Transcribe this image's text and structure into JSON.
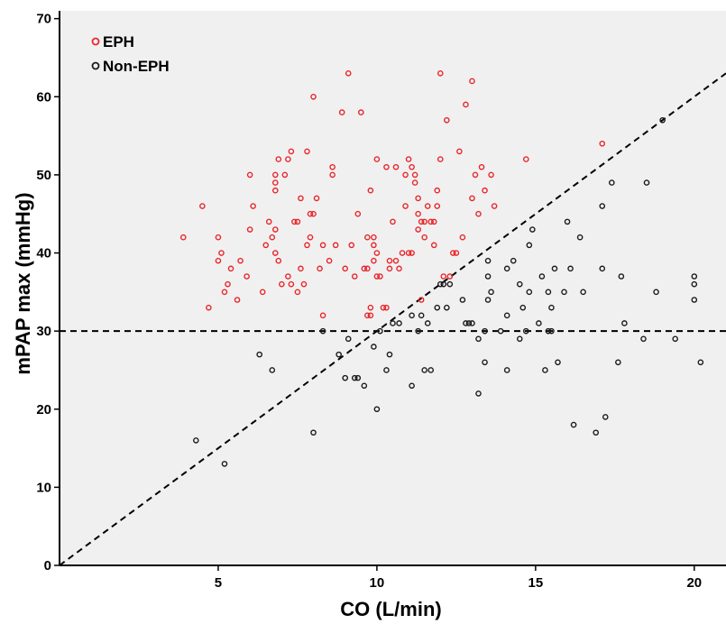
{
  "chart_data": {
    "type": "scatter",
    "xlabel": "CO (L/min)",
    "ylabel": "mPAP max (mmHg)",
    "xlim": [
      0,
      21
    ],
    "ylim": [
      0,
      71
    ],
    "xticks": [
      5,
      10,
      15,
      20
    ],
    "yticks": [
      0,
      10,
      20,
      30,
      40,
      50,
      60,
      70
    ],
    "grid": false,
    "background": "#f0f0f0",
    "legend_position": "top-left",
    "reference_lines": [
      {
        "kind": "horizontal",
        "y": 30,
        "style": "dashed"
      },
      {
        "kind": "diagonal",
        "x": [
          0,
          21
        ],
        "y": [
          0,
          63
        ],
        "style": "dashed"
      }
    ],
    "series": [
      {
        "name": "EPH",
        "color": "#e8262b",
        "points": [
          [
            3.9,
            42
          ],
          [
            4.5,
            46
          ],
          [
            4.7,
            33
          ],
          [
            5.0,
            42
          ],
          [
            5.0,
            39
          ],
          [
            5.1,
            40
          ],
          [
            5.2,
            35
          ],
          [
            5.3,
            36
          ],
          [
            5.4,
            38
          ],
          [
            5.6,
            34
          ],
          [
            5.7,
            39
          ],
          [
            5.9,
            37
          ],
          [
            6.0,
            50
          ],
          [
            6.0,
            43
          ],
          [
            6.1,
            46
          ],
          [
            6.4,
            35
          ],
          [
            6.5,
            41
          ],
          [
            6.6,
            44
          ],
          [
            6.7,
            42
          ],
          [
            6.8,
            43
          ],
          [
            6.8,
            50
          ],
          [
            6.8,
            49
          ],
          [
            6.8,
            48
          ],
          [
            6.8,
            40
          ],
          [
            6.9,
            39
          ],
          [
            6.9,
            52
          ],
          [
            7.0,
            36
          ],
          [
            7.1,
            50
          ],
          [
            7.2,
            37
          ],
          [
            7.2,
            52
          ],
          [
            7.3,
            53
          ],
          [
            7.3,
            36
          ],
          [
            7.4,
            44
          ],
          [
            7.5,
            44
          ],
          [
            7.5,
            35
          ],
          [
            7.6,
            38
          ],
          [
            7.6,
            47
          ],
          [
            7.7,
            36
          ],
          [
            7.8,
            53
          ],
          [
            7.8,
            41
          ],
          [
            7.9,
            45
          ],
          [
            7.9,
            42
          ],
          [
            8.0,
            60
          ],
          [
            8.0,
            45
          ],
          [
            8.1,
            47
          ],
          [
            8.2,
            38
          ],
          [
            8.3,
            32
          ],
          [
            8.3,
            41
          ],
          [
            8.5,
            39
          ],
          [
            8.6,
            51
          ],
          [
            8.6,
            50
          ],
          [
            8.7,
            41
          ],
          [
            8.9,
            58
          ],
          [
            9.0,
            38
          ],
          [
            9.1,
            63
          ],
          [
            9.2,
            41
          ],
          [
            9.3,
            37
          ],
          [
            9.4,
            45
          ],
          [
            9.5,
            58
          ],
          [
            9.6,
            38
          ],
          [
            9.7,
            38
          ],
          [
            9.7,
            32
          ],
          [
            9.7,
            42
          ],
          [
            9.8,
            48
          ],
          [
            9.8,
            32
          ],
          [
            9.8,
            33
          ],
          [
            9.9,
            41
          ],
          [
            9.9,
            42
          ],
          [
            9.9,
            39
          ],
          [
            10.0,
            40
          ],
          [
            10.0,
            37
          ],
          [
            10.0,
            52
          ],
          [
            10.1,
            37
          ],
          [
            10.2,
            33
          ],
          [
            10.3,
            33
          ],
          [
            10.3,
            51
          ],
          [
            10.4,
            39
          ],
          [
            10.4,
            38
          ],
          [
            10.5,
            44
          ],
          [
            10.6,
            39
          ],
          [
            10.6,
            51
          ],
          [
            10.7,
            38
          ],
          [
            10.8,
            40
          ],
          [
            10.9,
            46
          ],
          [
            10.9,
            50
          ],
          [
            11.0,
            52
          ],
          [
            11.0,
            40
          ],
          [
            11.1,
            51
          ],
          [
            11.1,
            40
          ],
          [
            11.2,
            49
          ],
          [
            11.2,
            50
          ],
          [
            11.3,
            45
          ],
          [
            11.3,
            47
          ],
          [
            11.3,
            43
          ],
          [
            11.4,
            34
          ],
          [
            11.4,
            44
          ],
          [
            11.5,
            42
          ],
          [
            11.5,
            44
          ],
          [
            11.6,
            46
          ],
          [
            11.7,
            44
          ],
          [
            11.8,
            44
          ],
          [
            11.8,
            41
          ],
          [
            11.9,
            46
          ],
          [
            11.9,
            48
          ],
          [
            12.0,
            63
          ],
          [
            12.0,
            52
          ],
          [
            12.1,
            37
          ],
          [
            12.2,
            57
          ],
          [
            12.3,
            37
          ],
          [
            12.4,
            40
          ],
          [
            12.5,
            40
          ],
          [
            12.6,
            53
          ],
          [
            12.7,
            42
          ],
          [
            12.8,
            59
          ],
          [
            13.0,
            62
          ],
          [
            13.0,
            47
          ],
          [
            13.1,
            50
          ],
          [
            13.2,
            45
          ],
          [
            13.3,
            51
          ],
          [
            13.4,
            48
          ],
          [
            13.6,
            50
          ],
          [
            13.7,
            46
          ],
          [
            14.7,
            52
          ],
          [
            17.1,
            54
          ]
        ]
      },
      {
        "name": "Non-EPH",
        "color": "#1a1a1a",
        "points": [
          [
            4.3,
            16
          ],
          [
            5.2,
            13
          ],
          [
            6.3,
            27
          ],
          [
            6.7,
            25
          ],
          [
            8.0,
            17
          ],
          [
            8.3,
            30
          ],
          [
            8.8,
            27
          ],
          [
            9.0,
            24
          ],
          [
            9.1,
            29
          ],
          [
            9.3,
            24
          ],
          [
            9.4,
            24
          ],
          [
            9.6,
            23
          ],
          [
            9.9,
            28
          ],
          [
            10.0,
            20
          ],
          [
            10.1,
            30
          ],
          [
            10.3,
            25
          ],
          [
            10.4,
            27
          ],
          [
            10.5,
            31
          ],
          [
            10.7,
            31
          ],
          [
            11.1,
            23
          ],
          [
            11.1,
            32
          ],
          [
            11.3,
            30
          ],
          [
            11.4,
            32
          ],
          [
            11.5,
            25
          ],
          [
            11.6,
            31
          ],
          [
            11.7,
            25
          ],
          [
            11.9,
            33
          ],
          [
            12.0,
            36
          ],
          [
            12.1,
            36
          ],
          [
            12.2,
            33
          ],
          [
            12.3,
            36
          ],
          [
            12.7,
            34
          ],
          [
            12.8,
            31
          ],
          [
            12.9,
            31
          ],
          [
            13.0,
            31
          ],
          [
            13.2,
            22
          ],
          [
            13.2,
            29
          ],
          [
            13.4,
            26
          ],
          [
            13.4,
            30
          ],
          [
            13.5,
            34
          ],
          [
            13.5,
            37
          ],
          [
            13.5,
            39
          ],
          [
            13.6,
            35
          ],
          [
            13.9,
            30
          ],
          [
            14.1,
            38
          ],
          [
            14.1,
            32
          ],
          [
            14.1,
            25
          ],
          [
            14.3,
            39
          ],
          [
            14.5,
            29
          ],
          [
            14.5,
            36
          ],
          [
            14.6,
            33
          ],
          [
            14.7,
            30
          ],
          [
            14.8,
            35
          ],
          [
            14.8,
            41
          ],
          [
            14.9,
            43
          ],
          [
            15.1,
            31
          ],
          [
            15.2,
            37
          ],
          [
            15.3,
            25
          ],
          [
            15.4,
            35
          ],
          [
            15.4,
            30
          ],
          [
            15.5,
            30
          ],
          [
            15.5,
            33
          ],
          [
            15.6,
            38
          ],
          [
            15.7,
            26
          ],
          [
            15.9,
            35
          ],
          [
            16.0,
            44
          ],
          [
            16.1,
            38
          ],
          [
            16.2,
            18
          ],
          [
            16.4,
            42
          ],
          [
            16.5,
            35
          ],
          [
            16.9,
            17
          ],
          [
            17.1,
            38
          ],
          [
            17.1,
            46
          ],
          [
            17.2,
            19
          ],
          [
            17.4,
            49
          ],
          [
            17.6,
            26
          ],
          [
            17.7,
            37
          ],
          [
            17.8,
            31
          ],
          [
            18.4,
            29
          ],
          [
            18.5,
            49
          ],
          [
            18.8,
            35
          ],
          [
            19.0,
            57
          ],
          [
            19.4,
            29
          ],
          [
            20.0,
            36
          ],
          [
            20.0,
            34
          ],
          [
            20.0,
            37
          ],
          [
            20.2,
            26
          ]
        ]
      }
    ]
  }
}
